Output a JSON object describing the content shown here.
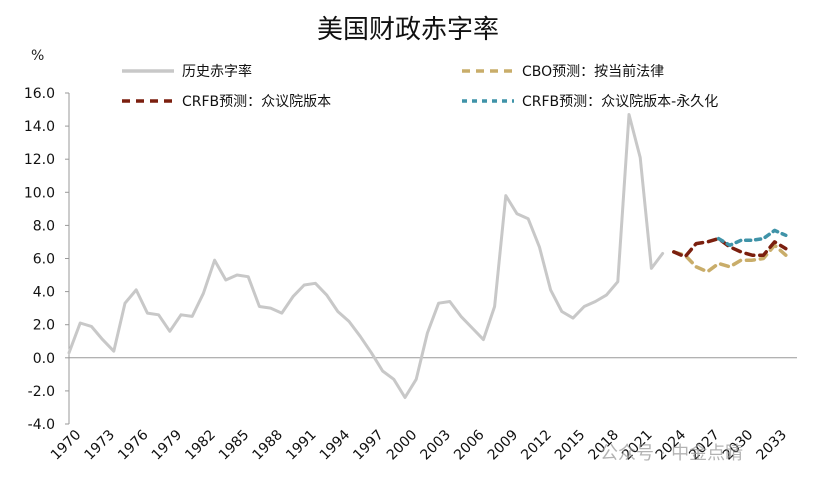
{
  "chart_data": {
    "type": "line",
    "title": "美国财政赤字率",
    "unit": "%",
    "ylim": [
      -4.0,
      16.0
    ],
    "yticks": [
      "16.0",
      "14.0",
      "12.0",
      "10.0",
      "8.0",
      "6.0",
      "4.0",
      "2.0",
      "0.0",
      "-2.0",
      "-4.0"
    ],
    "xlim": [
      1970,
      2035
    ],
    "xticks": [
      "1970",
      "1973",
      "1976",
      "1979",
      "1982",
      "1985",
      "1988",
      "1991",
      "1994",
      "1997",
      "2000",
      "2003",
      "2006",
      "2009",
      "2012",
      "2015",
      "2018",
      "2021",
      "2024",
      "2027",
      "2030",
      "2033"
    ],
    "grid": false,
    "legend_position": "top",
    "series": [
      {
        "name": "历史赤字率",
        "color": "#c8c8c8",
        "style": "solid",
        "x": [
          1970,
          1971,
          1972,
          1973,
          1974,
          1975,
          1976,
          1977,
          1978,
          1979,
          1980,
          1981,
          1982,
          1983,
          1984,
          1985,
          1986,
          1987,
          1988,
          1989,
          1990,
          1991,
          1992,
          1993,
          1994,
          1995,
          1996,
          1997,
          1998,
          1999,
          2000,
          2001,
          2002,
          2003,
          2004,
          2005,
          2006,
          2007,
          2008,
          2009,
          2010,
          2011,
          2012,
          2013,
          2014,
          2015,
          2016,
          2017,
          2018,
          2019,
          2020,
          2021,
          2022,
          2023
        ],
        "y": [
          0.3,
          2.1,
          1.9,
          1.1,
          0.4,
          3.3,
          4.1,
          2.7,
          2.6,
          1.6,
          2.6,
          2.5,
          3.9,
          5.9,
          4.7,
          5.0,
          4.9,
          3.1,
          3.0,
          2.7,
          3.7,
          4.4,
          4.5,
          3.8,
          2.8,
          2.2,
          1.3,
          0.3,
          -0.8,
          -1.3,
          -2.4,
          -1.3,
          1.5,
          3.3,
          3.4,
          2.5,
          1.8,
          1.1,
          3.1,
          9.8,
          8.7,
          8.4,
          6.7,
          4.1,
          2.8,
          2.4,
          3.1,
          3.4,
          3.8,
          4.6,
          14.7,
          12.1,
          5.4,
          6.3
        ]
      },
      {
        "name": "CBO预测：按当前法律",
        "color": "#c9ad6a",
        "style": "dashed",
        "x": [
          2024,
          2025,
          2026,
          2027,
          2028,
          2029,
          2030,
          2031,
          2032,
          2033,
          2034
        ],
        "y": [
          6.4,
          6.2,
          5.5,
          5.2,
          5.7,
          5.5,
          5.9,
          5.9,
          6.0,
          6.8,
          6.2
        ]
      },
      {
        "name": "CRFB预测：众议院版本",
        "color": "#7b1f0e",
        "style": "dashed",
        "x": [
          2024,
          2025,
          2026,
          2027,
          2028,
          2029,
          2030,
          2031,
          2032,
          2033,
          2034
        ],
        "y": [
          6.4,
          6.1,
          6.9,
          7.0,
          7.2,
          6.7,
          6.4,
          6.2,
          6.2,
          7.0,
          6.6
        ]
      },
      {
        "name": "CRFB预测：众议院版本-永久化",
        "color": "#3f93a8",
        "style": "dashed",
        "x": [
          2028,
          2029,
          2030,
          2031,
          2032,
          2033,
          2034
        ],
        "y": [
          7.2,
          6.8,
          7.1,
          7.1,
          7.2,
          7.7,
          7.4
        ]
      }
    ]
  },
  "watermark": "公众号 · 中金点睛"
}
